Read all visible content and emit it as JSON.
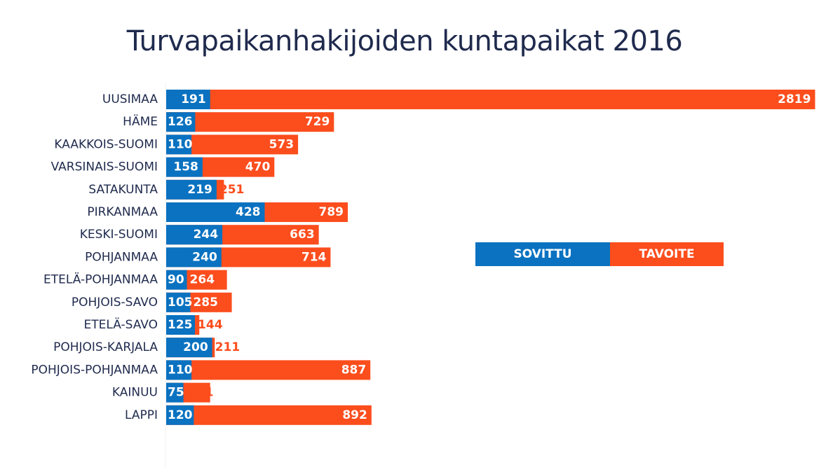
{
  "chart_data": {
    "type": "bar",
    "orientation": "horizontal",
    "stacked": true,
    "title": "Turvapaikanhakijoiden kuntapaikat 2016",
    "categories": [
      "UUSIMAA",
      "HÄME",
      "KAAKKOIS-SUOMI",
      "VARSINAIS-SUOMI",
      "SATAKUNTA",
      "PIRKANMAA",
      "KESKI-SUOMI",
      "POHJANMAA",
      "ETELÄ-POHJANMAA",
      "POHJOIS-SAVO",
      "ETELÄ-SAVO",
      "POHJOIS-KARJALA",
      "POHJOIS-POHJANMAA",
      "KAINUU",
      "LAPPI"
    ],
    "series": [
      {
        "name": "SOVITTU",
        "color": "#0a72c0",
        "values": [
          191,
          126,
          110,
          158,
          219,
          428,
          244,
          240,
          90,
          105,
          125,
          200,
          110,
          75,
          120
        ]
      },
      {
        "name": "TAVOITE",
        "color": "#fc4d1d",
        "values": [
          2819,
          729,
          573,
          470,
          251,
          789,
          663,
          714,
          264,
          285,
          144,
          211,
          887,
          191,
          892
        ]
      }
    ],
    "legend_position": "right",
    "grid": false
  }
}
